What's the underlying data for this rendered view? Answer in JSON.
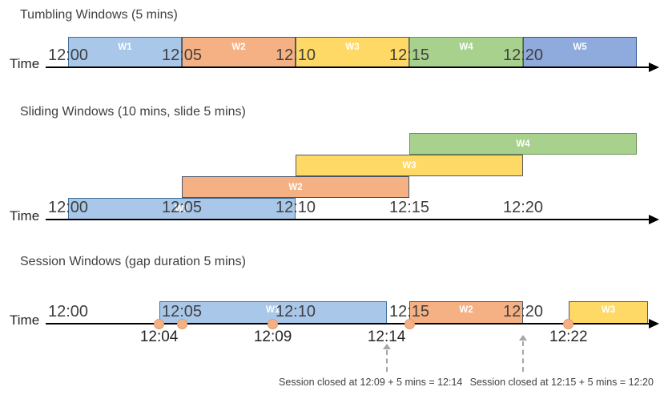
{
  "colors": {
    "background": "#ffffff",
    "text_primary": "#3f3f3f",
    "text_dark": "#262626",
    "timeline": "#000000",
    "annotation_text": "#404040",
    "annotation_arrow": "#a6a6a6",
    "event_dot_fill": "#f2b189",
    "event_dot_border": "#e8995f",
    "palette": {
      "blue_light": {
        "fill": "#a9c7e8",
        "border": "#41719c"
      },
      "orange": {
        "fill": "#f5b183",
        "border": "#44546a"
      },
      "yellow": {
        "fill": "#ffd966",
        "border": "#595959"
      },
      "green": {
        "fill": "#a9d18e",
        "border": "#6d9155"
      },
      "blue": {
        "fill": "#8faadc",
        "border": "#2f5597"
      }
    }
  },
  "diagrams": [
    {
      "title": "Tumbling Windows (5 mins)",
      "time_axis_label": "Time",
      "ticks": [
        {
          "label": "12:00",
          "min": 0
        },
        {
          "label": "12:05",
          "min": 5
        },
        {
          "label": "12:10",
          "min": 10
        },
        {
          "label": "12:15",
          "min": 15
        },
        {
          "label": "12:20",
          "min": 20
        }
      ],
      "windows": [
        {
          "label": "W1",
          "start": "12:00",
          "end": "12:05",
          "min_start": 0,
          "min_end": 5,
          "color": "blue_light",
          "row": 0
        },
        {
          "label": "W2",
          "start": "12:05",
          "end": "12:10",
          "min_start": 5,
          "min_end": 10,
          "color": "orange",
          "row": 0
        },
        {
          "label": "W3",
          "start": "12:10",
          "end": "12:15",
          "min_start": 10,
          "min_end": 15,
          "color": "yellow",
          "row": 0
        },
        {
          "label": "W4",
          "start": "12:15",
          "end": "12:20",
          "min_start": 15,
          "min_end": 20,
          "color": "green",
          "row": 0
        },
        {
          "label": "W5",
          "start": "12:20",
          "end": "12:25",
          "min_start": 20,
          "min_end": 25,
          "color": "blue",
          "row": 0
        }
      ]
    },
    {
      "title": "Sliding Windows (10 mins, slide 5 mins)",
      "time_axis_label": "Time",
      "ticks": [
        {
          "label": "12:00",
          "min": 0
        },
        {
          "label": "12:05",
          "min": 5
        },
        {
          "label": "12:10",
          "min": 10
        },
        {
          "label": "12:15",
          "min": 15
        },
        {
          "label": "12:20",
          "min": 20
        }
      ],
      "windows": [
        {
          "label": "W1",
          "start": "12:00",
          "end": "12:10",
          "min_start": 0,
          "min_end": 10,
          "color": "blue_light",
          "row": 0
        },
        {
          "label": "W2",
          "start": "12:05",
          "end": "12:15",
          "min_start": 5,
          "min_end": 15,
          "color": "orange",
          "row": 1
        },
        {
          "label": "W3",
          "start": "12:10",
          "end": "12:20",
          "min_start": 10,
          "min_end": 20,
          "color": "yellow",
          "row": 2
        },
        {
          "label": "W4",
          "start": "12:15",
          "end": "12:25",
          "min_start": 15,
          "min_end": 25,
          "color": "green",
          "row": 3
        }
      ]
    },
    {
      "title": "Session Windows (gap duration 5 mins)",
      "time_axis_label": "Time",
      "ticks": [
        {
          "label": "12:00",
          "min": 0
        },
        {
          "label": "12:05",
          "min": 5
        },
        {
          "label": "12:10",
          "min": 10
        },
        {
          "label": "12:15",
          "min": 15
        },
        {
          "label": "12:20",
          "min": 20
        }
      ],
      "windows": [
        {
          "label": "W1",
          "start": "12:04",
          "end": "12:14",
          "min_start": 4,
          "min_end": 14,
          "color": "blue_light",
          "row": 0
        },
        {
          "label": "W2",
          "start": "12:15",
          "end": "12:20",
          "min_start": 15,
          "min_end": 20,
          "color": "orange",
          "row": 0
        },
        {
          "label": "W3",
          "start": "12:22",
          "min_start": 22,
          "min_end": 25.5,
          "color": "yellow",
          "row": 0
        }
      ],
      "events": [
        {
          "min": 4
        },
        {
          "min": 5
        },
        {
          "min": 9
        },
        {
          "min": 15
        },
        {
          "min": 22
        }
      ],
      "below_labels": [
        {
          "text": "12:04",
          "min": 4
        },
        {
          "text": "12:09",
          "min": 9
        },
        {
          "text": "12:14",
          "min": 14
        },
        {
          "text": "12:22",
          "min": 22
        }
      ],
      "annotations": [
        {
          "text": "Session closed at 12:09 + 5 mins = 12:14",
          "arrow_min": 14,
          "center_min": 13.3
        },
        {
          "text": "Session closed at 12:15 + 5 mins = 12:20",
          "arrow_min": 20,
          "center_min": 21.7
        }
      ]
    }
  ]
}
